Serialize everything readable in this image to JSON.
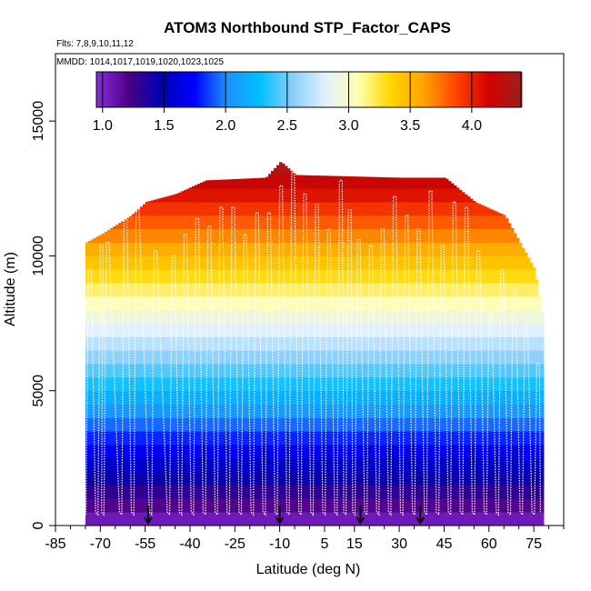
{
  "chart_data": {
    "type": "heatmap",
    "title": "ATOM3 Northbound STP_Factor_CAPS",
    "subtitle_flights": "Flts: 7,8,9,10,11,12",
    "subtitle_dates": "MMDD: 1014,1017,1019,1020,1023,1025",
    "xlabel": "Latitude (deg N)",
    "ylabel": "Altitude (m)",
    "xlim": [
      -85,
      85
    ],
    "ylim": [
      0,
      17500
    ],
    "x_ticks": [
      -85,
      -70,
      -55,
      -40,
      -25,
      -10,
      5,
      15,
      30,
      45,
      60,
      75
    ],
    "x_minor_ticks": [
      -80,
      -75,
      -65,
      -60,
      -50,
      -45,
      -35,
      -30,
      -20,
      -15,
      -5,
      0,
      10,
      20,
      25,
      35,
      40,
      50,
      55,
      65,
      70,
      80,
      85
    ],
    "y_ticks": [
      0,
      5000,
      10000,
      15000
    ],
    "colorbar": {
      "range": [
        0.95,
        4.4
      ],
      "ticks": [
        1.0,
        1.5,
        2.0,
        2.5,
        3.0,
        3.5,
        4.0
      ],
      "tick_labels": [
        "1.0",
        "1.5",
        "2.0",
        "2.5",
        "3.0",
        "3.5",
        "4.0"
      ],
      "colors": [
        "#8a2be2",
        "#4b0082",
        "#0000b4",
        "#0000ff",
        "#1e90ff",
        "#00bfff",
        "#87cefa",
        "#e0f0ff",
        "#ffffb4",
        "#ffd700",
        "#ffa500",
        "#ff4500",
        "#d20000",
        "#a01e1e"
      ]
    },
    "field": {
      "altitude_bin_m": 500,
      "value_at_surface": 1.0,
      "value_gradient_per_km": 0.25,
      "profile_top_altitude": [
        {
          "lat": -75,
          "alt": 10500
        },
        {
          "lat": -70,
          "alt": 10800
        },
        {
          "lat": -60,
          "alt": 11500
        },
        {
          "lat": -55,
          "alt": 12000
        },
        {
          "lat": -45,
          "alt": 12300
        },
        {
          "lat": -35,
          "alt": 12800
        },
        {
          "lat": -15,
          "alt": 12900
        },
        {
          "lat": -10,
          "alt": 13500
        },
        {
          "lat": -5,
          "alt": 13000
        },
        {
          "lat": 30,
          "alt": 12900
        },
        {
          "lat": 45,
          "alt": 12900
        },
        {
          "lat": 55,
          "alt": 12000
        },
        {
          "lat": 65,
          "alt": 11500
        },
        {
          "lat": 70,
          "alt": 10500
        },
        {
          "lat": 75,
          "alt": 9500
        },
        {
          "lat": 78,
          "alt": 7500
        }
      ]
    },
    "flight_track": {
      "color": "#ffffff",
      "profile_latitudes": [
        -74,
        -70,
        -68,
        -62,
        -58,
        -52,
        -46,
        -42,
        -38,
        -34,
        -30,
        -26,
        -22,
        -18,
        -14,
        -10,
        -6,
        -2,
        2,
        6,
        10,
        13,
        16,
        20,
        24,
        28,
        32,
        36,
        40,
        44,
        48,
        52,
        56,
        60,
        64,
        68,
        72,
        76
      ],
      "profile_peak_altitudes": [
        9500,
        10400,
        10500,
        11500,
        11900,
        10200,
        10000,
        10800,
        11400,
        11100,
        11800,
        11800,
        10800,
        11600,
        11600,
        12600,
        13100,
        12300,
        11900,
        11000,
        12800,
        11700,
        10600,
        10400,
        11000,
        12200,
        11500,
        11000,
        12400,
        10400,
        12000,
        11800,
        10200,
        8000,
        9500,
        8800,
        7500,
        6000
      ]
    },
    "markers": {
      "type": "down-arrow",
      "latitudes": [
        -54,
        -10,
        17,
        37
      ]
    }
  }
}
